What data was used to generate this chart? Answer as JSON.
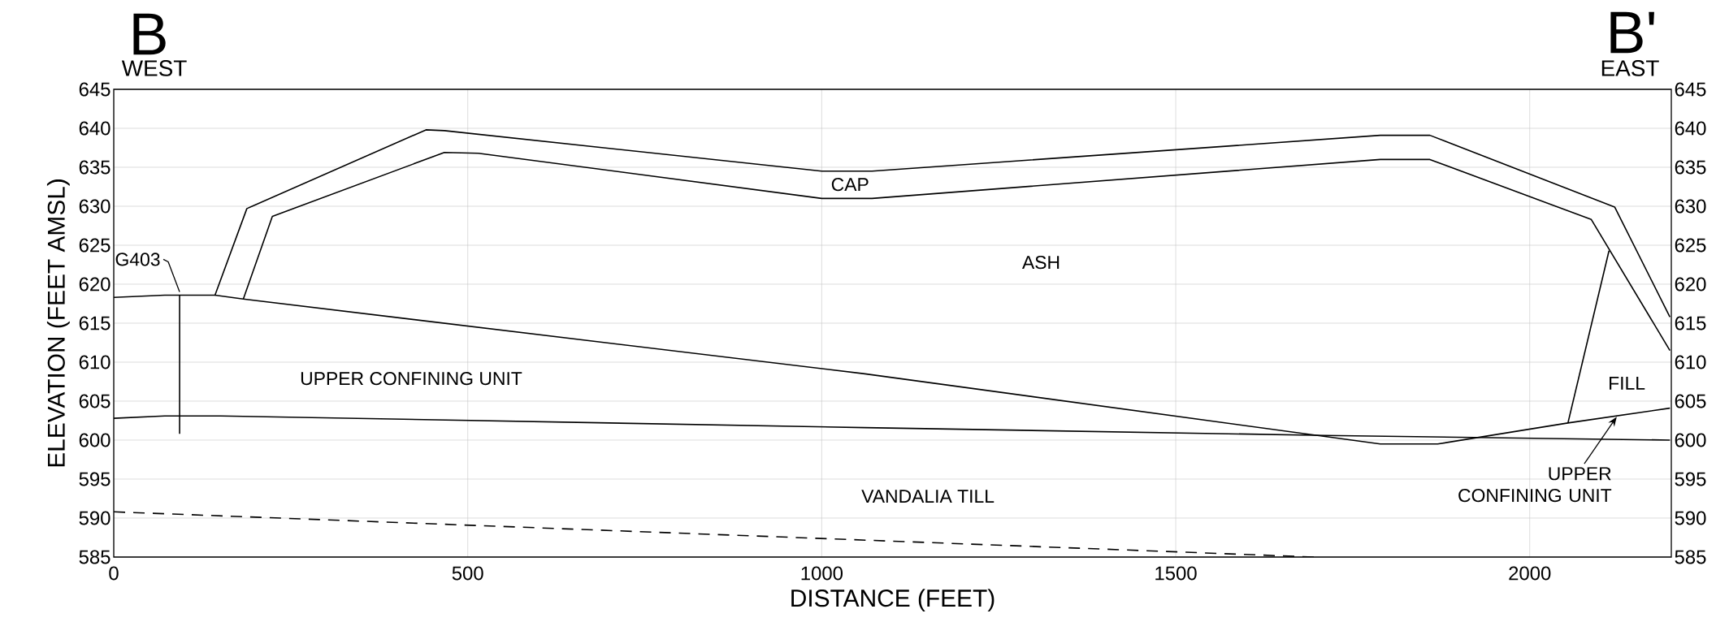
{
  "chart_data": {
    "type": "line",
    "xlabel": "DISTANCE (FEET)",
    "ylabel": "ELEVATION (FEET AMSL)",
    "xlim": [
      0,
      2200
    ],
    "xticks": [
      0,
      500,
      1000,
      1500,
      2000
    ],
    "ylim": [
      585,
      645
    ],
    "yticks": [
      585,
      590,
      595,
      600,
      605,
      610,
      615,
      620,
      625,
      630,
      635,
      640,
      645
    ],
    "y2lim": [
      585,
      645
    ],
    "y2ticks": [
      585,
      590,
      595,
      600,
      605,
      610,
      615,
      620,
      625,
      630,
      635,
      640,
      645
    ],
    "grid": true,
    "marker": "none",
    "series": [
      {
        "color": "#000000",
        "line_style": "solid",
        "x": [
          0,
          72,
          143,
          188,
          441,
          467,
          1000,
          1071,
          1789,
          1859,
          2120,
          2198
        ],
        "values": [
          618.3,
          618.6,
          618.6,
          629.7,
          639.8,
          639.7,
          634.5,
          634.5,
          639.1,
          639.1,
          629.9,
          615.8
        ]
      },
      {
        "color": "#000000",
        "line_style": "solid",
        "x": [
          183,
          224,
          467,
          515,
          1000,
          1071,
          1789,
          1859,
          2087,
          2198
        ],
        "values": [
          618.1,
          628.7,
          636.9,
          636.8,
          631.0,
          631.0,
          636.0,
          636.0,
          628.3,
          611.5
        ]
      },
      {
        "color": "#000000",
        "line_style": "solid",
        "x": [
          143,
          183,
          1061,
          1789,
          1870,
          2054,
          2198
        ],
        "values": [
          618.6,
          618.1,
          608.5,
          599.5,
          599.5,
          602.2,
          604.1
        ]
      },
      {
        "color": "#000000",
        "line_style": "solid",
        "x": [
          0,
          72,
          151,
          1061,
          1711,
          2198
        ],
        "values": [
          602.8,
          603.1,
          603.1,
          601.6,
          600.6,
          600.0
        ]
      },
      {
        "color": "#000000",
        "line_style": "solid",
        "x": [
          2054,
          2112
        ],
        "values": [
          602.2,
          624.3
        ]
      },
      {
        "color": "#000000",
        "line_style": "solid",
        "x": [
          93,
          93
        ],
        "values": [
          618.6,
          600.8
        ]
      },
      {
        "color": "#000000",
        "line_style": "dashed",
        "x": [
          0,
          1695
        ],
        "values": [
          590.8,
          585.0
        ]
      }
    ],
    "annotations": [
      "B",
      "WEST",
      "B'",
      "EAST",
      "CAP",
      "ASH",
      "UPPER  CONFINING UNIT",
      "VANDALIA TILL",
      "FILL",
      {
        "text": "G403",
        "x": 93,
        "y": 618.6
      },
      {
        "text": "UPPER CONFINING UNIT",
        "x": 2123,
        "y": 603.0
      }
    ]
  }
}
